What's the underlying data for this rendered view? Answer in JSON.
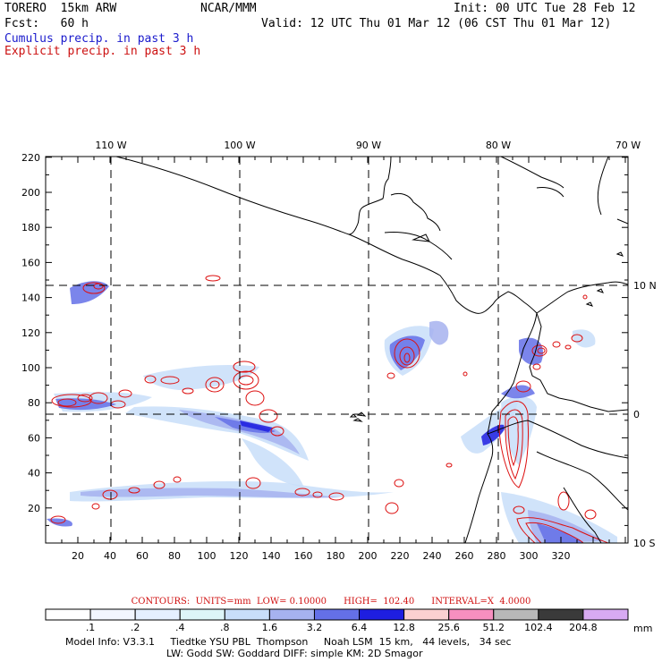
{
  "header": {
    "model": "TORERO  15km ARW",
    "org": "NCAR/MMM",
    "init": "Init: 00 UTC Tue 28 Feb 12",
    "fcst": "Fcst:   60 h",
    "valid": "Valid: 12 UTC Thu 01 Mar 12 (06 CST Thu 01 Mar 12)",
    "cumulus_label": "Cumulus precip. in past 3 h",
    "explicit_label": "Explicit precip. in past 3 h"
  },
  "colors": {
    "cumulus": "#1a1acc",
    "explicit": "#cc1010",
    "coast": "#000000",
    "grid": "#000000"
  },
  "map": {
    "top_lon_labels": [
      "110 W",
      "100 W",
      "90 W",
      "80 W",
      "70 W"
    ],
    "right_lat_labels": [
      "10 N",
      "0",
      "10 S"
    ],
    "x_ticks": [
      "20",
      "40",
      "60",
      "80",
      "100",
      "120",
      "140",
      "160",
      "180",
      "200",
      "220",
      "240",
      "260",
      "280",
      "300",
      "320"
    ],
    "y_ticks": [
      "20",
      "40",
      "60",
      "80",
      "100",
      "120",
      "140",
      "160",
      "180",
      "200",
      "220"
    ]
  },
  "contour_info": "CONTOURS:  UNITS=mm  LOW= 0.10000      HIGH=  102.40      INTERVAL=X  4.0000",
  "colorbar": {
    "unit": "mm",
    "labels": [
      ".1",
      ".2",
      ".4",
      ".8",
      "1.6",
      "3.2",
      "6.4",
      "12.8",
      "25.6",
      "51.2",
      "102.4",
      "204.8"
    ],
    "colors": [
      "#ffffff",
      "#f2f6ff",
      "#e4efff",
      "#ddf5f8",
      "#c8def9",
      "#a6b2ef",
      "#6470e8",
      "#1e1ee0",
      "#fbd0d0",
      "#f78fbf",
      "#b8b8b8",
      "#3a3a3a",
      "#d8aaf2"
    ]
  },
  "footer": {
    "line1": "Model Info: V3.3.1     Tiedtke YSU PBL  Thompson     Noah LSM  15 km,   44 levels,   34 sec",
    "line2": "LW: Godd SW: Goddard DIFF: simple KM: 2D Smagor"
  }
}
